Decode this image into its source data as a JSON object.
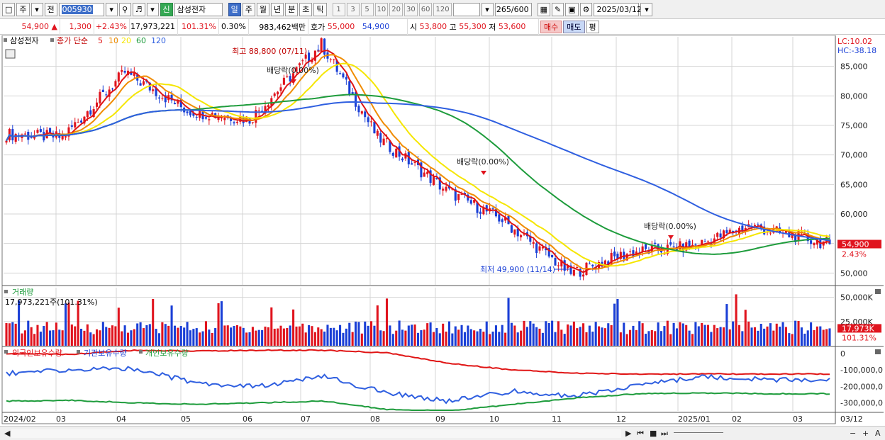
{
  "toolbar": {
    "period_day_label": "주",
    "compare_label": "전",
    "stock_code": "005930",
    "badge_new": "신",
    "stock_name": "삼성전자",
    "tabs": [
      "일",
      "주",
      "월",
      "년",
      "분",
      "초",
      "틱"
    ],
    "minute_options": [
      "1",
      "3",
      "5",
      "10",
      "20",
      "30",
      "60",
      "120"
    ],
    "bar_count": "265",
    "bar_total": "/600",
    "date": "2025/03/12"
  },
  "quote": {
    "price": "54,900",
    "arrow": "▲",
    "change": "1,300",
    "change_pct": "+2.43%",
    "volume": "17,973,221",
    "volume_ratio": "101.31%",
    "turnover_pct": "0.30%",
    "amount": "983,462백만",
    "ask_label": "호가",
    "ask1": "55,000",
    "bid1": "54,900",
    "open_label": "시",
    "open": "53,800",
    "high_label": "고",
    "high": "55,300",
    "low_label": "저",
    "low": "53,600",
    "buy_label": "매수",
    "sell_label": "매도",
    "flat_label": "평"
  },
  "legend": {
    "stock": "삼성전자",
    "ma_label": "종가 단순",
    "ma_periods": [
      "5",
      "10",
      "20",
      "60",
      "120"
    ],
    "ma_colors": [
      "#e01515",
      "#f08c00",
      "#f5e600",
      "#1e9c3c",
      "#2f5fe0"
    ],
    "lc": "LC:10.02",
    "hc": "HC:-38.18"
  },
  "annotations": {
    "high": "최고 88,800 (07/11)",
    "low": "최저 49,900 (11/14)",
    "dividends": [
      "배당락(0.00%)",
      "배당락(0.00%)",
      "배당락(0.00%)"
    ]
  },
  "price_axis": {
    "ticks": [
      "85,000",
      "80,000",
      "75,000",
      "70,000",
      "65,000",
      "60,000",
      "55,000",
      "50,000"
    ],
    "current": "54,900",
    "current_pct": "2.43%"
  },
  "volume_panel": {
    "title": "거래량",
    "value": "17,973,221주(101.31%)",
    "ticks": [
      "50,000K",
      "25,000K"
    ],
    "current": "17,973K",
    "current_pct": "101.31%"
  },
  "holding_panel": {
    "series_labels": [
      "외국인보유수량",
      "기관보유수량",
      "개인보유수량"
    ],
    "series_colors": [
      "#e01515",
      "#2f5fe0",
      "#1e9c3c"
    ],
    "ticks": [
      "0",
      "-100,000,0",
      "-200,000,0",
      "-300,000,0"
    ]
  },
  "x_axis": {
    "labels": [
      "2024/02",
      "03",
      "04",
      "05",
      "06",
      "07",
      "08",
      "09",
      "10",
      "11",
      "12",
      "2025/01",
      "02",
      "03"
    ],
    "right_label": "03/12"
  },
  "chart_data": {
    "type": "candlestick",
    "price_range": [
      48000,
      90000
    ],
    "x_range": [
      "2024-02",
      "2025-03-12"
    ],
    "key_points": [
      {
        "date": "2024-02",
        "close": 73500
      },
      {
        "date": "2024-03",
        "close": 73000
      },
      {
        "date": "2024-04",
        "close": 84000
      },
      {
        "date": "2024-05",
        "close": 77500
      },
      {
        "date": "2024-06",
        "close": 76000
      },
      {
        "date": "2024-07-11",
        "close": 88800
      },
      {
        "date": "2024-08",
        "close": 73000
      },
      {
        "date": "2024-09",
        "close": 64000
      },
      {
        "date": "2024-10",
        "close": 59000
      },
      {
        "date": "2024-11-14",
        "close": 49900
      },
      {
        "date": "2024-12",
        "close": 53500
      },
      {
        "date": "2025-01",
        "close": 54500
      },
      {
        "date": "2025-02",
        "close": 58000
      },
      {
        "date": "2025-03-12",
        "close": 54900
      }
    ],
    "last": {
      "open": 53800,
      "high": 55300,
      "low": 53600,
      "close": 54900
    },
    "volume_last": 17973221,
    "volume_range": [
      0,
      60000000
    ]
  }
}
